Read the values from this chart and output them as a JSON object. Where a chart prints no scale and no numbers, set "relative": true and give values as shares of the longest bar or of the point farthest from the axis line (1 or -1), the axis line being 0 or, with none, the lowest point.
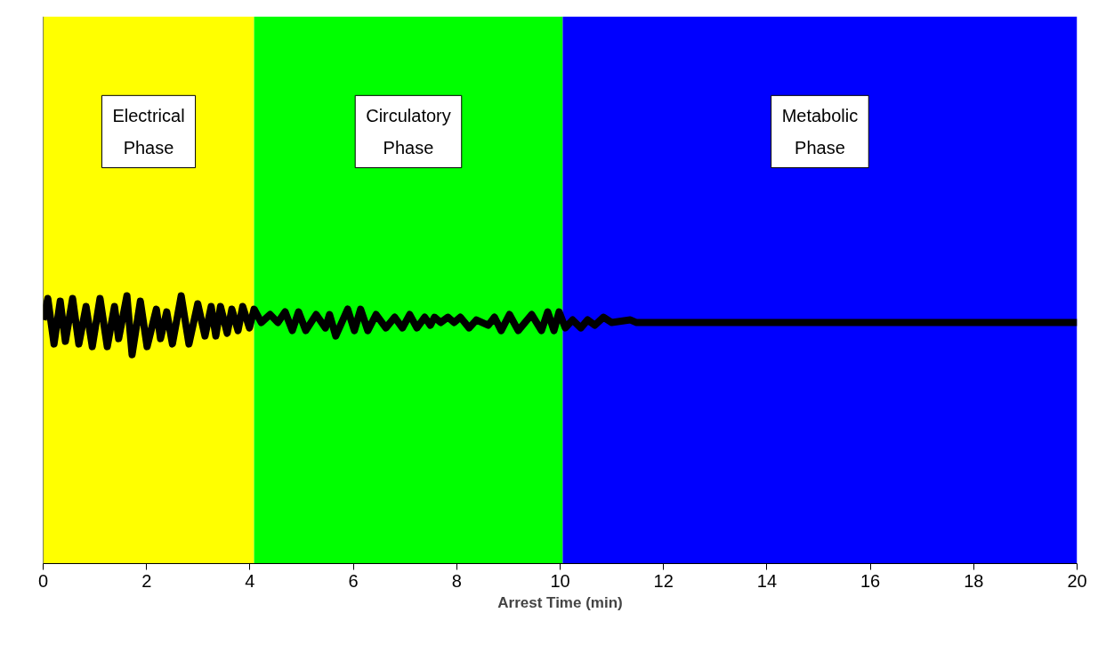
{
  "chart_data": {
    "type": "line",
    "relative": true,
    "xlabel": "Arrest Time (min)",
    "xlim": [
      0,
      20
    ],
    "xticks": [
      0,
      2,
      4,
      6,
      8,
      10,
      12,
      14,
      16,
      18,
      20
    ],
    "grid": false,
    "marker": "none",
    "line_style": "solid",
    "bands": [
      {
        "axis": "x",
        "from": 0,
        "to": 4.08,
        "label": "Electrical\nPhase",
        "color": "#ffff00"
      },
      {
        "axis": "x",
        "from": 4.08,
        "to": 10.05,
        "label": "Circulatory\nPhase",
        "color": "#00ff00"
      },
      {
        "axis": "x",
        "from": 10.05,
        "to": 20,
        "label": "Metabolic\nPhase",
        "color": "#0000ff"
      }
    ],
    "series": [
      {
        "color": "#000000",
        "x": [
          0.0,
          0.09,
          0.21,
          0.33,
          0.43,
          0.57,
          0.69,
          0.83,
          0.95,
          1.1,
          1.24,
          1.38,
          1.46,
          1.62,
          1.72,
          1.88,
          2.01,
          2.19,
          2.27,
          2.39,
          2.5,
          2.67,
          2.82,
          2.99,
          3.13,
          3.25,
          3.34,
          3.43,
          3.56,
          3.65,
          3.77,
          3.86,
          3.99,
          4.08,
          4.22,
          4.39,
          4.54,
          4.68,
          4.82,
          4.94,
          5.08,
          5.28,
          5.46,
          5.54,
          5.66,
          5.89,
          6.02,
          6.14,
          6.28,
          6.44,
          6.63,
          6.8,
          6.95,
          7.09,
          7.23,
          7.38,
          7.49,
          7.57,
          7.69,
          7.83,
          7.95,
          8.07,
          8.24,
          8.38,
          8.61,
          8.73,
          8.86,
          9.02,
          9.19,
          9.45,
          9.64,
          9.76,
          9.88,
          9.98,
          10.1,
          10.24,
          10.4,
          10.53,
          10.67,
          10.84,
          11.0,
          11.36,
          11.48,
          20.0
        ],
        "values": [
          0.91,
          0.99,
          0.82,
          0.98,
          0.83,
          0.99,
          0.82,
          0.96,
          0.81,
          0.99,
          0.81,
          0.96,
          0.84,
          1.0,
          0.78,
          0.98,
          0.81,
          0.95,
          0.84,
          0.94,
          0.82,
          1.0,
          0.82,
          0.97,
          0.85,
          0.96,
          0.85,
          0.96,
          0.86,
          0.95,
          0.87,
          0.96,
          0.88,
          0.95,
          0.9,
          0.93,
          0.9,
          0.94,
          0.87,
          0.94,
          0.87,
          0.93,
          0.88,
          0.93,
          0.85,
          0.95,
          0.87,
          0.95,
          0.87,
          0.93,
          0.88,
          0.92,
          0.88,
          0.93,
          0.88,
          0.92,
          0.89,
          0.92,
          0.9,
          0.92,
          0.9,
          0.92,
          0.88,
          0.91,
          0.89,
          0.92,
          0.87,
          0.93,
          0.87,
          0.93,
          0.87,
          0.94,
          0.87,
          0.94,
          0.88,
          0.91,
          0.88,
          0.91,
          0.89,
          0.92,
          0.9,
          0.91,
          0.9,
          0.9
        ]
      }
    ]
  }
}
